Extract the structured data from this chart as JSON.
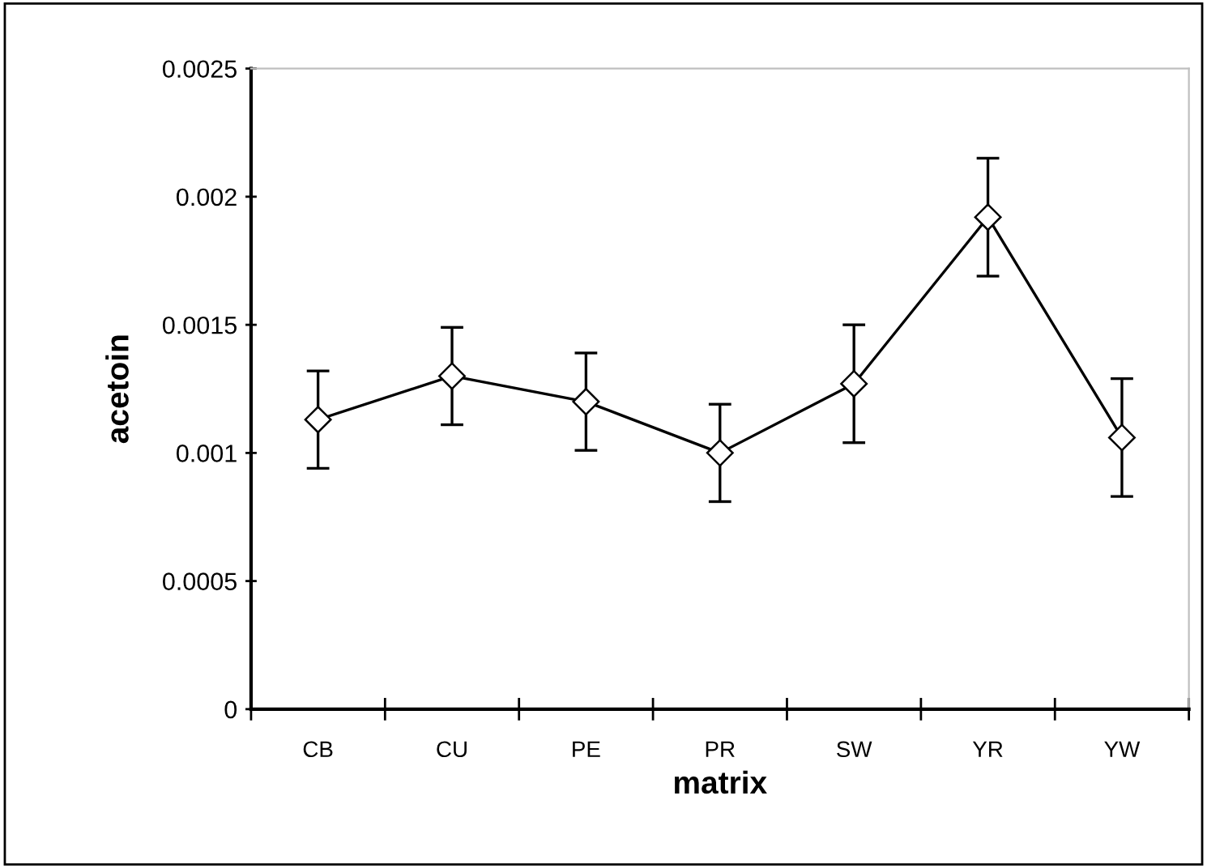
{
  "chart_data": {
    "type": "line",
    "xlabel": "matrix",
    "ylabel": "acetoin",
    "categories": [
      "CB",
      "CU",
      "PE",
      "PR",
      "SW",
      "YR",
      "YW"
    ],
    "series": [
      {
        "color": "#000000",
        "values": [
          0.00113,
          0.0013,
          0.0012,
          0.001,
          0.00127,
          0.00192,
          0.00106
        ],
        "errors": [
          0.00019,
          0.00019,
          0.00019,
          0.00019,
          0.00023,
          0.00023,
          0.00023
        ]
      }
    ],
    "ylim": [
      0,
      0.0025
    ],
    "yticks": [
      0,
      0.0005,
      0.001,
      0.0015,
      0.002,
      0.0025
    ],
    "marker": "diamond",
    "line_style": "solid",
    "grid": false
  }
}
